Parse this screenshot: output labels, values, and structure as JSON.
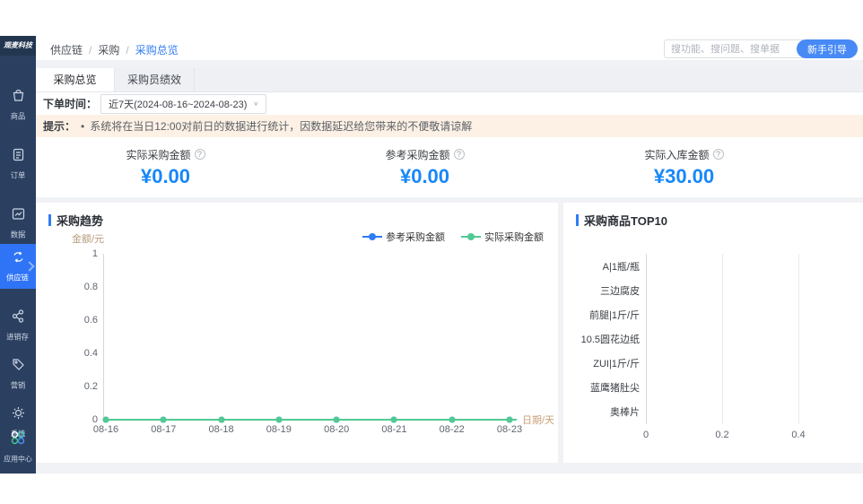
{
  "brand": {
    "logo_text": "观麦科技"
  },
  "breadcrumb": {
    "items": [
      "供应链",
      "采购",
      "采购总览"
    ],
    "separator": "/"
  },
  "topbar": {
    "search_placeholder": "搜功能、搜问题、搜单据",
    "guide_button": "新手引导"
  },
  "sidebar": {
    "items": [
      {
        "label": "商品",
        "icon": "bag-icon",
        "active": false
      },
      {
        "label": "订单",
        "icon": "document-icon",
        "active": false
      },
      {
        "label": "数据",
        "icon": "chart-icon",
        "active": false
      },
      {
        "label": "供应链",
        "icon": "supply-chain-icon",
        "active": true
      },
      {
        "label": "进销存",
        "icon": "share-icon",
        "active": false
      },
      {
        "label": "营销",
        "icon": "tag-icon",
        "active": false
      },
      {
        "label": "系统",
        "icon": "gear-icon",
        "active": false
      }
    ],
    "app_center": "应用中心"
  },
  "tabs": [
    {
      "label": "采购总览",
      "active": true
    },
    {
      "label": "采购员绩效",
      "active": false
    }
  ],
  "filter": {
    "label": "下单时间：",
    "value": "近7天(2024-08-16~2024-08-23)",
    "chevron": "∨"
  },
  "notice": {
    "prefix": "提示：",
    "bullet": "•",
    "text": "系统将在当日12:00对前日的数据进行统计，因数据延迟给您带来的不便敬请谅解"
  },
  "metrics": [
    {
      "label": "实际采购金额",
      "info": "?",
      "value": "¥0.00"
    },
    {
      "label": "参考采购金额",
      "info": "?",
      "value": "¥0.00"
    },
    {
      "label": "实际入库金额",
      "info": "?",
      "value": "¥30.00"
    }
  ],
  "trend_panel": {
    "title": "采购趋势"
  },
  "top10_panel": {
    "title": "采购商品TOP10"
  },
  "colors": {
    "accent_blue": "#2f7cf6",
    "value_blue": "#1787f9",
    "series_blue": "#2f7cf6",
    "series_green": "#52c993",
    "sidebar_bg": "#2b4060",
    "notice_bg": "#fdf1e5"
  },
  "chart_data": [
    {
      "type": "line",
      "title": "采购趋势",
      "x": [
        "08-16",
        "08-17",
        "08-18",
        "08-19",
        "08-20",
        "08-21",
        "08-22",
        "08-23"
      ],
      "series": [
        {
          "name": "参考采购金额",
          "color": "#2f7cf6",
          "values": [
            0,
            0,
            0,
            0,
            0,
            0,
            0,
            0
          ]
        },
        {
          "name": "实际采购金额",
          "color": "#52c993",
          "values": [
            0,
            0,
            0,
            0,
            0,
            0,
            0,
            0
          ]
        }
      ],
      "ylabel": "金额/元",
      "xlabel": "日期/天",
      "ylim": [
        0,
        1
      ],
      "yticks": [
        0,
        0.2,
        0.4,
        0.6,
        0.8,
        1
      ],
      "legend_position": "top-right",
      "grid": false
    },
    {
      "type": "bar",
      "orientation": "horizontal",
      "title": "采购商品TOP10",
      "categories": [
        "A|1瓶/瓶",
        "三边腐皮",
        "前腿|1斤/斤",
        "10.5圆花边纸",
        "ZUI|1斤/斤",
        "蓝鹰猪肚尖",
        "奥棒片"
      ],
      "values": [
        0,
        0,
        0,
        0,
        0,
        0,
        0
      ],
      "xticks": [
        0,
        0.2,
        0.4
      ],
      "xlim": [
        0,
        0.55
      ],
      "grid": true
    }
  ]
}
